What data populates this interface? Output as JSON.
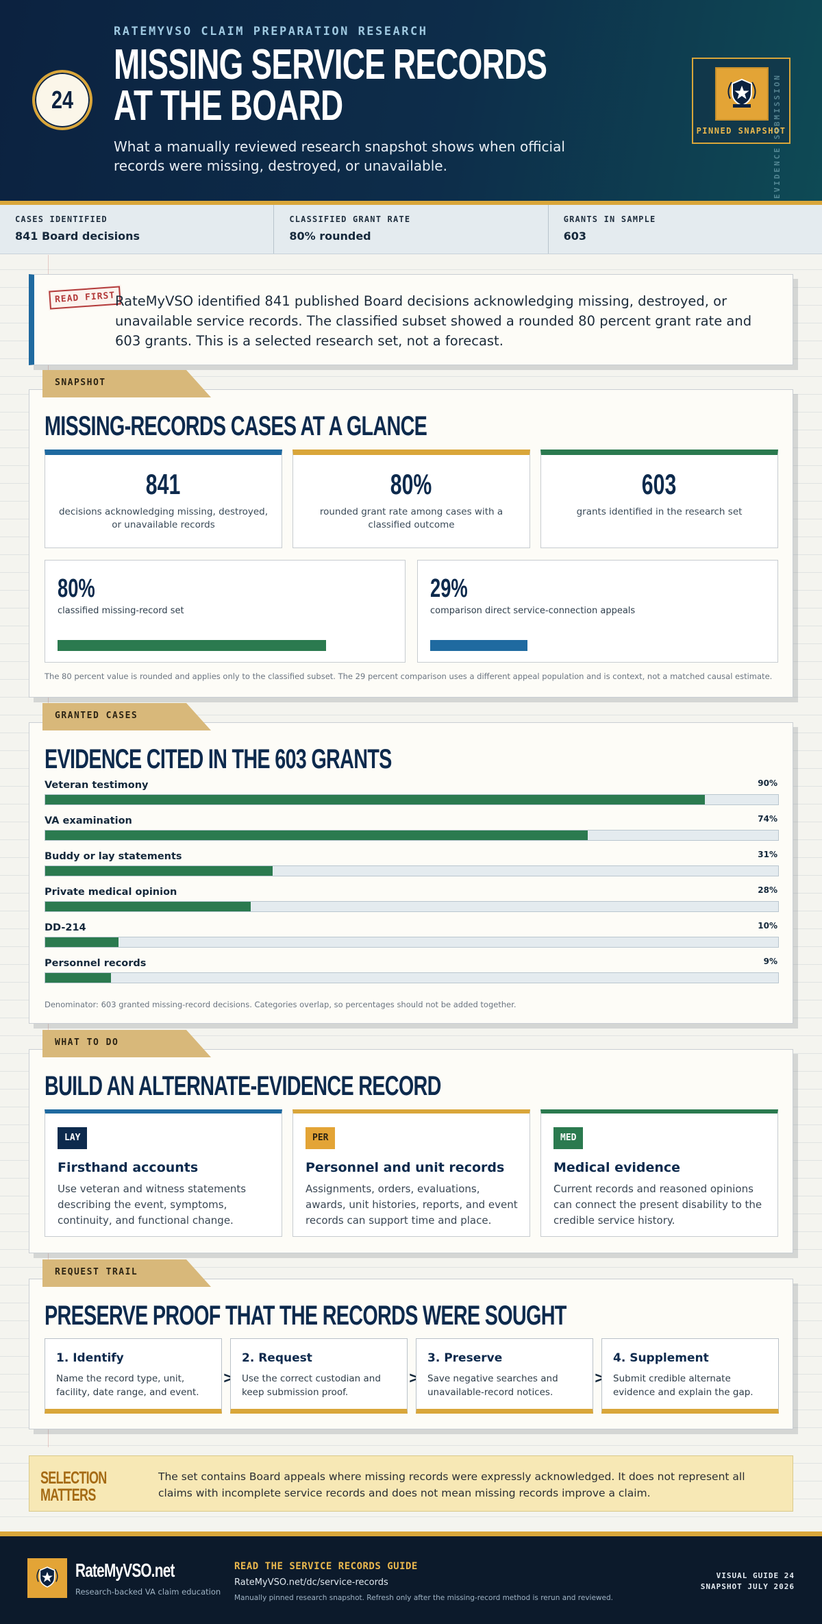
{
  "header": {
    "kicker": "RATEMYVSO CLAIM PREPARATION RESEARCH",
    "title_line1": "MISSING SERVICE RECORDS",
    "title_line2": "AT THE BOARD",
    "subtitle": "What a manually reviewed research snapshot shows when official records were missing, destroyed, or unavailable.",
    "guide_number": "24",
    "pinned_label": "PINNED SNAPSHOT",
    "vertical_stamp": "EVIDENCE SUBMISSION"
  },
  "stats": [
    {
      "label": "CASES IDENTIFIED",
      "value": "841 Board decisions"
    },
    {
      "label": "CLASSIFIED GRANT RATE",
      "value": "80% rounded"
    },
    {
      "label": "GRANTS IN SAMPLE",
      "value": "603"
    }
  ],
  "read_first": {
    "stamp": "READ FIRST",
    "text": "RateMyVSO identified 841 published Board decisions acknowledging missing, destroyed, or unavailable service records. The classified subset showed a rounded 80 percent grant rate and 603 grants. This is a selected research set, not a forecast."
  },
  "snapshot": {
    "tab": "SNAPSHOT",
    "title": "MISSING-RECORDS CASES AT A GLANCE",
    "metrics": [
      {
        "value": "841",
        "desc": "decisions acknowledging missing, destroyed, or unavailable records",
        "color": "#1f6aa0"
      },
      {
        "value": "80%",
        "desc": "rounded grant rate among cases with a classified outcome",
        "color": "#d9a63a"
      },
      {
        "value": "603",
        "desc": "grants identified in the research set",
        "color": "#2b7a4f"
      }
    ],
    "comparisons": [
      {
        "value": "80%",
        "desc": "classified missing-record set",
        "pct": 80,
        "color": "#2b7a4f"
      },
      {
        "value": "29%",
        "desc": "comparison direct service-connection appeals",
        "pct": 29,
        "color": "#1f6aa0"
      }
    ],
    "note": "The 80 percent value is rounded and applies only to the classified subset. The 29 percent comparison uses a different appeal population and is context, not a matched causal estimate."
  },
  "granted": {
    "tab": "GRANTED CASES",
    "title": "EVIDENCE CITED IN THE 603 GRANTS",
    "bars": [
      {
        "label": "Veteran testimony",
        "pct_label": "90%",
        "pct": 90
      },
      {
        "label": "VA examination",
        "pct_label": "74%",
        "pct": 74
      },
      {
        "label": "Buddy or lay statements",
        "pct_label": "31%",
        "pct": 31
      },
      {
        "label": "Private medical opinion",
        "pct_label": "28%",
        "pct": 28
      },
      {
        "label": "DD-214",
        "pct_label": "10%",
        "pct": 10
      },
      {
        "label": "Personnel records",
        "pct_label": "9%",
        "pct": 9
      }
    ],
    "note": "Denominator: 603 granted missing-record decisions. Categories overlap, so percentages should not be added together."
  },
  "what_to_do": {
    "tab": "WHAT TO DO",
    "title": "BUILD AN ALTERNATE-EVIDENCE RECORD",
    "cards": [
      {
        "tag": "LAY",
        "heading": "Firsthand accounts",
        "body": "Use veteran and witness statements describing the event, symptoms, continuity, and functional change.",
        "color": "#1f6aa0",
        "tag_bg": "#0d2a4d",
        "tag_fg": "#ffffff"
      },
      {
        "tag": "PER",
        "heading": "Personnel and unit records",
        "body": "Assignments, orders, evaluations, awards, unit histories, reports, and event records can support time and place.",
        "color": "#d9a63a",
        "tag_bg": "#e3a436",
        "tag_fg": "#2c2414"
      },
      {
        "tag": "MED",
        "heading": "Medical evidence",
        "body": "Current records and reasoned opinions can connect the present disability to the credible service history.",
        "color": "#2b7a4f",
        "tag_bg": "#2b7a4f",
        "tag_fg": "#ffffff"
      }
    ]
  },
  "request_trail": {
    "tab": "REQUEST TRAIL",
    "title": "PRESERVE PROOF THAT THE RECORDS WERE SOUGHT",
    "steps": [
      {
        "heading": "1. Identify",
        "body": "Name the record type, unit, facility, date range, and event."
      },
      {
        "heading": "2. Request",
        "body": "Use the correct custodian and keep submission proof."
      },
      {
        "heading": "3. Preserve",
        "body": "Save negative searches and unavailable-record notices."
      },
      {
        "heading": "4. Supplement",
        "body": "Submit credible alternate evidence and explain the gap."
      }
    ],
    "arrow": ">"
  },
  "selection": {
    "title_line1": "SELECTION",
    "title_line2": "MATTERS",
    "text": "The set contains Board appeals where missing records were expressly acknowledged. It does not represent all claims with incomplete service records and does not mean missing records improve a claim."
  },
  "footer": {
    "brand": "RateMyVSO.net",
    "tagline": "Research-backed VA claim education",
    "cta": "READ THE SERVICE RECORDS GUIDE",
    "url": "RateMyVSO.net/dc/service-records",
    "small": "Manually pinned research snapshot. Refresh only after the missing-record method is rerun and reviewed.",
    "right_line1": "VISUAL GUIDE 24",
    "right_line2": "SNAPSHOT JULY 2026"
  }
}
